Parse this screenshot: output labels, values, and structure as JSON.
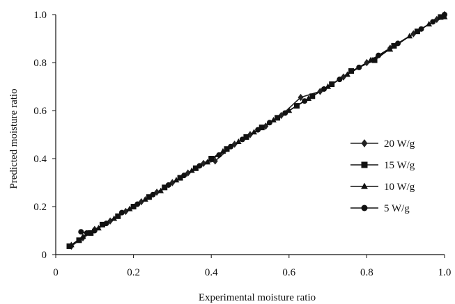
{
  "chart_data": {
    "type": "scatter",
    "title": "",
    "xlabel": "Experimental moisture ratio",
    "ylabel": "Predicted moisture ratio",
    "xlim": [
      0,
      1.0
    ],
    "ylim": [
      0,
      1.0
    ],
    "xticks": [
      "0",
      "0.2",
      "0.4",
      "0.6",
      "0.8",
      "1.0"
    ],
    "yticks": [
      "0",
      "0.2",
      "0.4",
      "0.6",
      "0.8",
      "1.0"
    ],
    "grid": false,
    "legend_position": "right",
    "series": [
      {
        "name": "20 W/g",
        "marker": "diamond",
        "color": "#222222",
        "points": [
          [
            0.04,
            0.035
          ],
          [
            0.07,
            0.07
          ],
          [
            0.1,
            0.105
          ],
          [
            0.14,
            0.14
          ],
          [
            0.18,
            0.18
          ],
          [
            0.22,
            0.22
          ],
          [
            0.26,
            0.26
          ],
          [
            0.3,
            0.3
          ],
          [
            0.34,
            0.34
          ],
          [
            0.38,
            0.38
          ],
          [
            0.41,
            0.39
          ],
          [
            0.46,
            0.46
          ],
          [
            0.5,
            0.5
          ],
          [
            0.54,
            0.535
          ],
          [
            0.58,
            0.58
          ],
          [
            0.63,
            0.655
          ],
          [
            0.68,
            0.68
          ],
          [
            0.74,
            0.74
          ],
          [
            0.8,
            0.8
          ],
          [
            0.86,
            0.86
          ],
          [
            0.92,
            0.92
          ],
          [
            0.98,
            0.98
          ],
          [
            1.0,
            1.0
          ]
        ]
      },
      {
        "name": "15 W/g",
        "marker": "square",
        "color": "#111111",
        "points": [
          [
            0.035,
            0.035
          ],
          [
            0.06,
            0.06
          ],
          [
            0.09,
            0.09
          ],
          [
            0.12,
            0.125
          ],
          [
            0.16,
            0.16
          ],
          [
            0.2,
            0.2
          ],
          [
            0.24,
            0.24
          ],
          [
            0.28,
            0.28
          ],
          [
            0.32,
            0.32
          ],
          [
            0.36,
            0.36
          ],
          [
            0.4,
            0.4
          ],
          [
            0.44,
            0.44
          ],
          [
            0.49,
            0.49
          ],
          [
            0.53,
            0.53
          ],
          [
            0.57,
            0.57
          ],
          [
            0.62,
            0.62
          ],
          [
            0.66,
            0.66
          ],
          [
            0.71,
            0.71
          ],
          [
            0.76,
            0.765
          ],
          [
            0.82,
            0.81
          ],
          [
            0.87,
            0.87
          ],
          [
            0.93,
            0.93
          ],
          [
            0.99,
            0.99
          ]
        ]
      },
      {
        "name": "10 W/g",
        "marker": "triangle",
        "color": "#111111",
        "points": [
          [
            0.04,
            0.04
          ],
          [
            0.07,
            0.075
          ],
          [
            0.11,
            0.11
          ],
          [
            0.15,
            0.15
          ],
          [
            0.19,
            0.19
          ],
          [
            0.23,
            0.23
          ],
          [
            0.27,
            0.265
          ],
          [
            0.31,
            0.31
          ],
          [
            0.35,
            0.35
          ],
          [
            0.39,
            0.385
          ],
          [
            0.43,
            0.43
          ],
          [
            0.47,
            0.47
          ],
          [
            0.51,
            0.51
          ],
          [
            0.56,
            0.56
          ],
          [
            0.6,
            0.6
          ],
          [
            0.65,
            0.65
          ],
          [
            0.7,
            0.7
          ],
          [
            0.75,
            0.75
          ],
          [
            0.81,
            0.81
          ],
          [
            0.86,
            0.855
          ],
          [
            0.91,
            0.91
          ],
          [
            0.96,
            0.96
          ],
          [
            1.0,
            0.99
          ]
        ]
      },
      {
        "name": "5 W/g",
        "marker": "circle",
        "color": "#111111",
        "points": [
          [
            0.065,
            0.095
          ],
          [
            0.08,
            0.09
          ],
          [
            0.1,
            0.1
          ],
          [
            0.13,
            0.13
          ],
          [
            0.17,
            0.175
          ],
          [
            0.21,
            0.21
          ],
          [
            0.25,
            0.25
          ],
          [
            0.29,
            0.29
          ],
          [
            0.33,
            0.33
          ],
          [
            0.37,
            0.37
          ],
          [
            0.42,
            0.415
          ],
          [
            0.45,
            0.45
          ],
          [
            0.48,
            0.48
          ],
          [
            0.52,
            0.52
          ],
          [
            0.55,
            0.55
          ],
          [
            0.59,
            0.59
          ],
          [
            0.64,
            0.64
          ],
          [
            0.69,
            0.69
          ],
          [
            0.73,
            0.73
          ],
          [
            0.78,
            0.78
          ],
          [
            0.83,
            0.83
          ],
          [
            0.88,
            0.88
          ],
          [
            0.94,
            0.94
          ],
          [
            0.97,
            0.97
          ],
          [
            1.0,
            1.0
          ]
        ]
      }
    ]
  }
}
